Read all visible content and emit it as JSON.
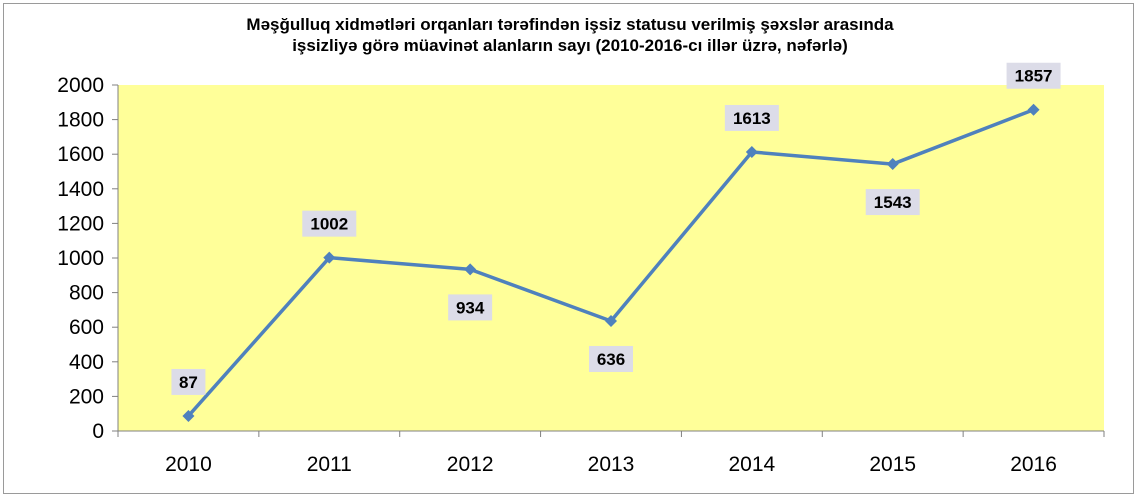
{
  "chart_data": {
    "type": "line",
    "title": [
      "Məşğulluq xidmətləri orqanları tərəfindən işsiz statusu verilmiş şəxslər arasında",
      "işsizliyə görə müavinət alanların sayı (2010-2016-cı illər üzrə, nəfərlə)"
    ],
    "categories": [
      "2010",
      "2011",
      "2012",
      "2013",
      "2014",
      "2015",
      "2016"
    ],
    "series": [
      {
        "values": [
          87,
          1002,
          934,
          636,
          1613,
          1543,
          1857
        ],
        "color": "#4f81bd"
      }
    ],
    "data_labels": [
      "87",
      "1002",
      "934",
      "636",
      "1613",
      "1543",
      "1857"
    ],
    "ylim": [
      0,
      2000
    ],
    "y_ticks": [
      "0",
      "200",
      "400",
      "600",
      "800",
      "1000",
      "1200",
      "1400",
      "1600",
      "1800",
      "2000"
    ],
    "plot_background": "#ffff99",
    "label_background": "#dcdce8",
    "grid": false,
    "legend": "none"
  }
}
